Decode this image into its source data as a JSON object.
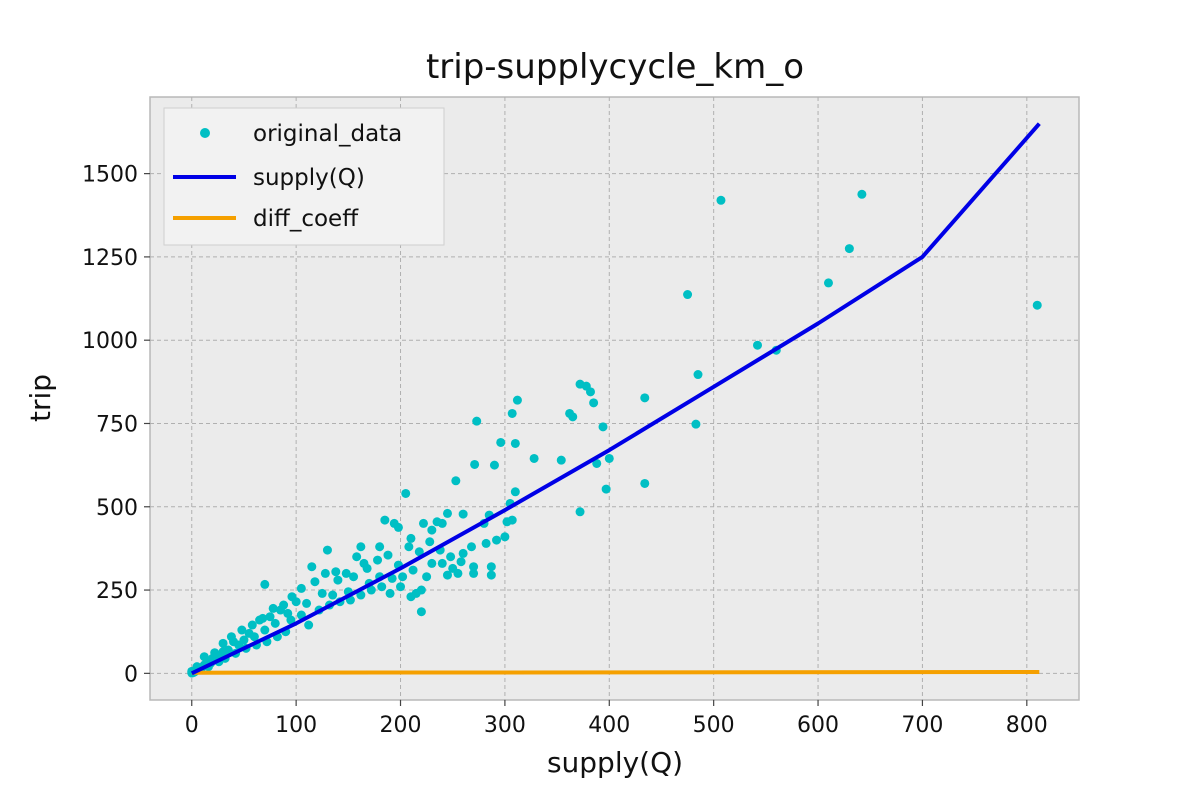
{
  "chart_data": {
    "type": "scatter",
    "title": "trip-supplycycle_km_o",
    "xlabel": "supply(Q)",
    "ylabel": "trip",
    "xlim": [
      -40,
      850
    ],
    "ylim": [
      -80,
      1730
    ],
    "xticks": [
      0,
      100,
      200,
      300,
      400,
      500,
      600,
      700,
      800
    ],
    "yticks": [
      0,
      250,
      500,
      750,
      1000,
      1250,
      1500
    ],
    "grid": true,
    "legend_position": "upper left",
    "colors": {
      "original_data": "#00bfc4",
      "supply": "#0000e6",
      "diff_coeff": "#f5a000",
      "background": "#ebebeb"
    },
    "series": [
      {
        "name": "original_data",
        "kind": "points",
        "points": [
          [
            810,
            1105
          ],
          [
            642,
            1438
          ],
          [
            630,
            1275
          ],
          [
            610,
            1172
          ],
          [
            560,
            970
          ],
          [
            542,
            985
          ],
          [
            507,
            1420
          ],
          [
            485,
            897
          ],
          [
            483,
            748
          ],
          [
            475,
            1137
          ],
          [
            434,
            827
          ],
          [
            434,
            570
          ],
          [
            400,
            645
          ],
          [
            397,
            553
          ],
          [
            394,
            740
          ],
          [
            388,
            630
          ],
          [
            385,
            812
          ],
          [
            382,
            845
          ],
          [
            378,
            862
          ],
          [
            372,
            868
          ],
          [
            372,
            485
          ],
          [
            365,
            770
          ],
          [
            362,
            780
          ],
          [
            354,
            640
          ],
          [
            328,
            645
          ],
          [
            312,
            820
          ],
          [
            310,
            690
          ],
          [
            310,
            545
          ],
          [
            307,
            780
          ],
          [
            305,
            510
          ],
          [
            307,
            460
          ],
          [
            302,
            455
          ],
          [
            296,
            693
          ],
          [
            290,
            625
          ],
          [
            285,
            475
          ],
          [
            280,
            450
          ],
          [
            273,
            757
          ],
          [
            271,
            627
          ],
          [
            260,
            478
          ],
          [
            253,
            578
          ],
          [
            245,
            480
          ],
          [
            240,
            450
          ],
          [
            235,
            455
          ],
          [
            230,
            430
          ],
          [
            222,
            450
          ],
          [
            205,
            540
          ],
          [
            210,
            405
          ],
          [
            198,
            438
          ],
          [
            194,
            450
          ],
          [
            185,
            460
          ],
          [
            180,
            380
          ],
          [
            162,
            380
          ],
          [
            130,
            370
          ],
          [
            70,
            267
          ],
          [
            240,
            330
          ],
          [
            250,
            315
          ],
          [
            245,
            295
          ],
          [
            255,
            300
          ],
          [
            270,
            320
          ],
          [
            270,
            300
          ],
          [
            287,
            320
          ],
          [
            287,
            295
          ],
          [
            300,
            410
          ],
          [
            292,
            400
          ],
          [
            282,
            390
          ],
          [
            260,
            360
          ],
          [
            230,
            330
          ],
          [
            225,
            290
          ],
          [
            220,
            250
          ],
          [
            215,
            240
          ],
          [
            220,
            185
          ],
          [
            210,
            230
          ],
          [
            200,
            260
          ],
          [
            190,
            240
          ],
          [
            180,
            290
          ],
          [
            170,
            270
          ],
          [
            165,
            330
          ],
          [
            155,
            290
          ],
          [
            150,
            245
          ],
          [
            140,
            280
          ],
          [
            135,
            235
          ],
          [
            125,
            240
          ],
          [
            115,
            320
          ],
          [
            110,
            210
          ],
          [
            100,
            215
          ],
          [
            92,
            180
          ],
          [
            85,
            190
          ],
          [
            80,
            150
          ],
          [
            75,
            170
          ],
          [
            70,
            130
          ],
          [
            65,
            160
          ],
          [
            60,
            110
          ],
          [
            55,
            120
          ],
          [
            50,
            100
          ],
          [
            45,
            85
          ],
          [
            40,
            95
          ],
          [
            35,
            70
          ],
          [
            30,
            65
          ],
          [
            25,
            50
          ],
          [
            20,
            45
          ],
          [
            18,
            30
          ],
          [
            15,
            35
          ],
          [
            12,
            25
          ],
          [
            10,
            18
          ],
          [
            8,
            15
          ],
          [
            6,
            12
          ],
          [
            4,
            8
          ],
          [
            3,
            5
          ],
          [
            2,
            3
          ],
          [
            1,
            2
          ],
          [
            0,
            1
          ],
          [
            0,
            6
          ],
          [
            5,
            20
          ],
          [
            12,
            50
          ],
          [
            22,
            62
          ],
          [
            30,
            90
          ],
          [
            38,
            110
          ],
          [
            48,
            130
          ],
          [
            58,
            145
          ],
          [
            68,
            165
          ],
          [
            78,
            195
          ],
          [
            88,
            205
          ],
          [
            96,
            230
          ],
          [
            105,
            255
          ],
          [
            118,
            275
          ],
          [
            128,
            300
          ],
          [
            138,
            305
          ],
          [
            148,
            300
          ],
          [
            158,
            350
          ],
          [
            168,
            315
          ],
          [
            178,
            340
          ],
          [
            188,
            355
          ],
          [
            198,
            325
          ],
          [
            208,
            380
          ],
          [
            218,
            365
          ],
          [
            228,
            395
          ],
          [
            238,
            370
          ],
          [
            248,
            350
          ],
          [
            258,
            335
          ],
          [
            268,
            380
          ],
          [
            95,
            160
          ],
          [
            105,
            175
          ],
          [
            112,
            145
          ],
          [
            122,
            190
          ],
          [
            132,
            205
          ],
          [
            142,
            215
          ],
          [
            152,
            220
          ],
          [
            162,
            235
          ],
          [
            172,
            250
          ],
          [
            182,
            260
          ],
          [
            192,
            285
          ],
          [
            202,
            290
          ],
          [
            212,
            310
          ],
          [
            62,
            85
          ],
          [
            72,
            95
          ],
          [
            82,
            110
          ],
          [
            90,
            125
          ],
          [
            52,
            75
          ],
          [
            42,
            60
          ],
          [
            32,
            45
          ],
          [
            26,
            35
          ],
          [
            16,
            20
          ]
        ]
      },
      {
        "name": "supply(Q)",
        "kind": "line",
        "points": [
          [
            0,
            0
          ],
          [
            100,
            150
          ],
          [
            200,
            315
          ],
          [
            300,
            490
          ],
          [
            400,
            670
          ],
          [
            500,
            860
          ],
          [
            600,
            1050
          ],
          [
            700,
            1250
          ],
          [
            812,
            1650
          ]
        ]
      },
      {
        "name": "diff_coeff",
        "kind": "line",
        "points": [
          [
            0,
            2
          ],
          [
            812,
            4
          ]
        ]
      }
    ]
  }
}
